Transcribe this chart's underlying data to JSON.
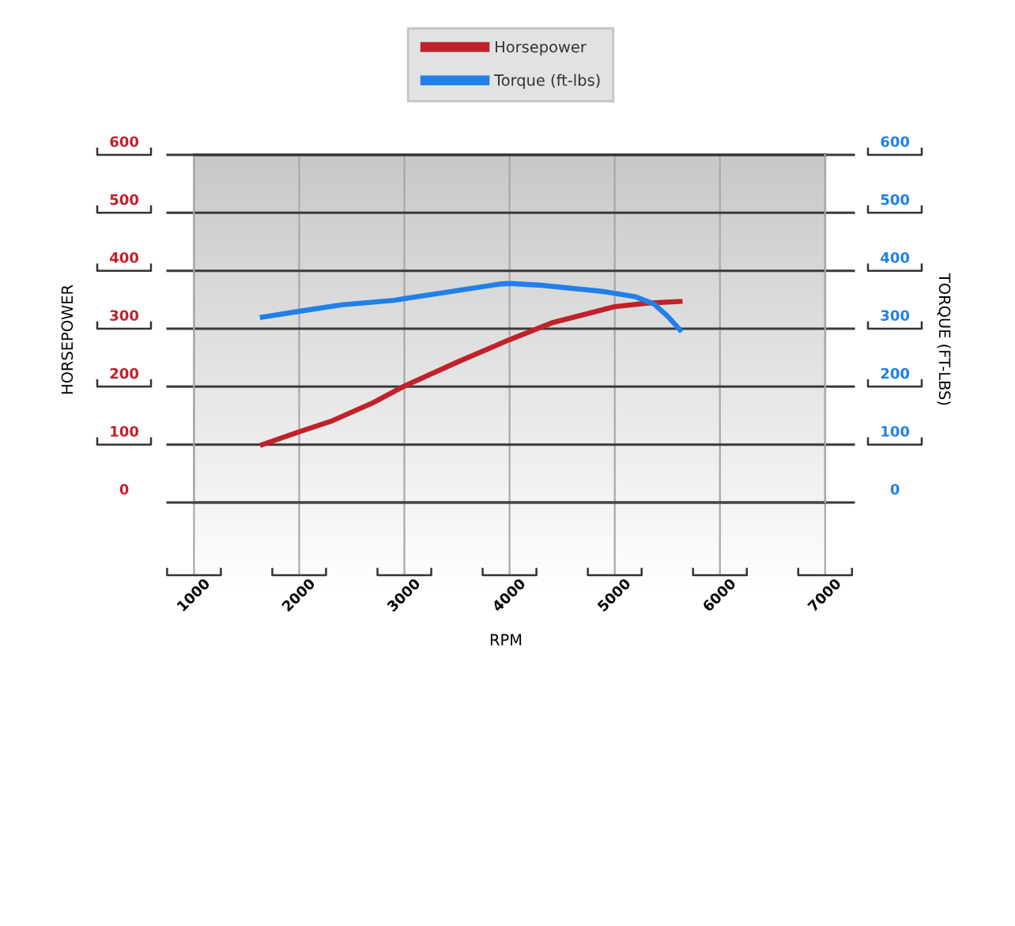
{
  "chart_data": {
    "type": "line",
    "xlabel": "RPM",
    "ylabel": "HORSEPOWER",
    "y2label": "TORQUE (FT-LBS)",
    "xlim": [
      1000,
      7000
    ],
    "xticks": [
      1000,
      2000,
      3000,
      4000,
      5000,
      6000,
      7000
    ],
    "ylim": [
      0,
      600
    ],
    "yticks": [
      0,
      100,
      200,
      300,
      400,
      500,
      600
    ],
    "y2lim": [
      0,
      600
    ],
    "y2ticks": [
      0,
      100,
      200,
      300,
      400,
      500,
      600
    ],
    "grid": true,
    "legend": "top",
    "line_style": "solid",
    "series": [
      {
        "name": "Horsepower",
        "color": "#c1212b",
        "x": [
          1650,
          2000,
          2300,
          2700,
          3000,
          3500,
          4000,
          4400,
          5000,
          5300,
          5620
        ],
        "values": [
          100,
          122,
          140,
          172,
          201,
          242,
          281,
          310,
          338,
          344,
          347
        ]
      },
      {
        "name": "Torque (ft-lbs)",
        "color": "#2080e8",
        "axis": "y2",
        "x": [
          1650,
          2000,
          2400,
          2900,
          3400,
          3900,
          4000,
          4300,
          4900,
          5200,
          5370,
          5500,
          5620
        ],
        "values": [
          320,
          330,
          341,
          349,
          363,
          377,
          378,
          375,
          364,
          355,
          343,
          322,
          298
        ]
      }
    ]
  }
}
